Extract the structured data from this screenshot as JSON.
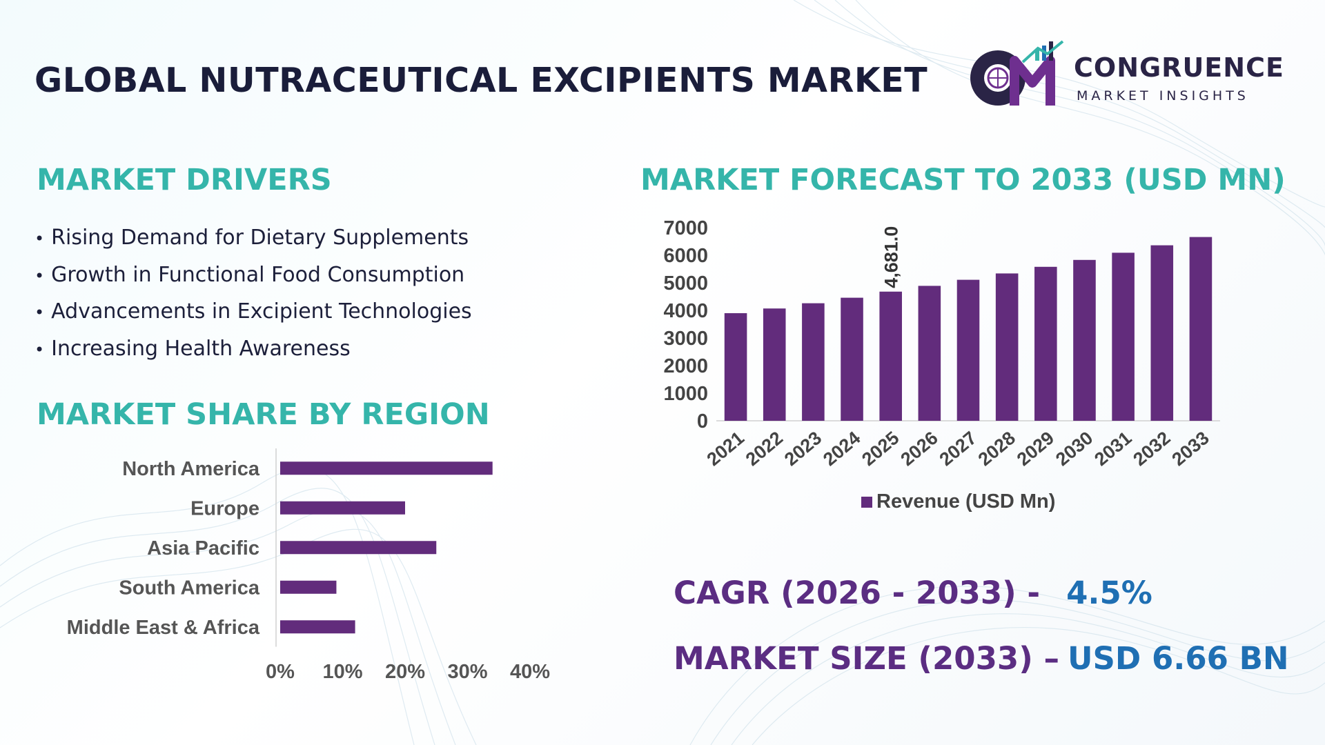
{
  "header": {
    "title": "GLOBAL NUTRACEUTICAL EXCIPIENTS MARKET",
    "logo": {
      "mark": "CM",
      "name": "CONGRUENCE",
      "tagline": "MARKET INSIGHTS"
    }
  },
  "drivers": {
    "title": "MARKET DRIVERS",
    "bullet": "•",
    "items": [
      "Rising Demand for Dietary Supplements",
      "Growth in Functional Food Consumption",
      "Advancements in Excipient Technologies",
      "Increasing Health Awareness"
    ]
  },
  "region_section": {
    "title": "MARKET SHARE BY REGION"
  },
  "forecast_section": {
    "title": "MARKET FORECAST TO 2033 (USD MN)"
  },
  "kpis": {
    "cagr_label": "CAGR (2026 - 2033) -",
    "cagr_value": "4.5%",
    "size_label": "MARKET SIZE (2033) –",
    "size_value": "USD 6.66 BN"
  },
  "colors": {
    "bar": "#622c7c",
    "accent_teal": "#35b5aa",
    "kpi_label": "#5b2d82",
    "kpi_value": "#1f6fb3",
    "title": "#1a1d3a"
  },
  "chart_data": [
    {
      "type": "bar",
      "orientation": "vertical",
      "categories": [
        "2021",
        "2022",
        "2023",
        "2024",
        "2025",
        "2026",
        "2027",
        "2028",
        "2029",
        "2030",
        "2031",
        "2032",
        "2033"
      ],
      "series": [
        {
          "name": "Revenue (USD Mn)",
          "values": [
            3900,
            4070,
            4260,
            4460,
            4681,
            4890,
            5110,
            5340,
            5580,
            5830,
            6090,
            6360,
            6660
          ]
        }
      ],
      "data_labels": [
        {
          "category": "2025",
          "text": "4,681.0"
        }
      ],
      "ylim": [
        0,
        7000
      ],
      "yticks": [
        0,
        1000,
        2000,
        3000,
        4000,
        5000,
        6000,
        7000
      ],
      "grid": false,
      "legend": "bottom"
    },
    {
      "type": "bar",
      "orientation": "horizontal",
      "categories": [
        "North America",
        "Europe",
        "Asia Pacific",
        "South America",
        "Middle East & Africa"
      ],
      "values": [
        34,
        20,
        25,
        9,
        12
      ],
      "unit": "%",
      "xlim": [
        0,
        40
      ],
      "xticks": [
        "0%",
        "10%",
        "20%",
        "30%",
        "40%"
      ],
      "grid": false,
      "legend": "none"
    }
  ]
}
